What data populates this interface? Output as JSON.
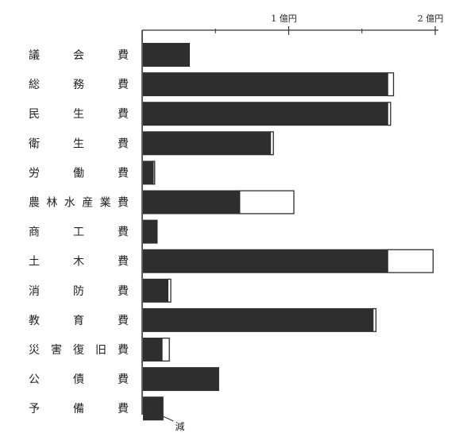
{
  "chart_data": {
    "type": "bar",
    "orientation": "horizontal",
    "stacked": true,
    "x_unit": "億円",
    "xlim": [
      0,
      2
    ],
    "xticks": [
      {
        "value": 1,
        "label": "1 億円"
      },
      {
        "value": 2,
        "label": "2 億円"
      }
    ],
    "minor_ticks": [
      0.5,
      1.5
    ],
    "categories": [
      "議会費",
      "総務費",
      "民生費",
      "衛生費",
      "労働費",
      "農林水産業費",
      "商工費",
      "土木費",
      "消防費",
      "教育費",
      "災害復旧費",
      "公債費",
      "予備費"
    ],
    "series": [
      {
        "values": [
          0.32,
          1.67,
          1.67,
          0.87,
          0.07,
          0.66,
          0.1,
          1.67,
          0.17,
          1.57,
          0.13,
          0.52,
          0.14
        ]
      },
      {
        "values": [
          0.0,
          0.04,
          0.02,
          0.02,
          0.01,
          0.37,
          0.0,
          0.31,
          0.02,
          0.02,
          0.05,
          0.0,
          0.0
        ]
      }
    ],
    "annotations": [
      {
        "text": "減",
        "x": 0.16,
        "note": "arrow from axis baseline at bottom"
      }
    ],
    "colors": {
      "bar_fill": "#2e2e2e",
      "increment_fill": "#ffffff",
      "axis": "#333333"
    },
    "grid": false,
    "legend": "none"
  }
}
